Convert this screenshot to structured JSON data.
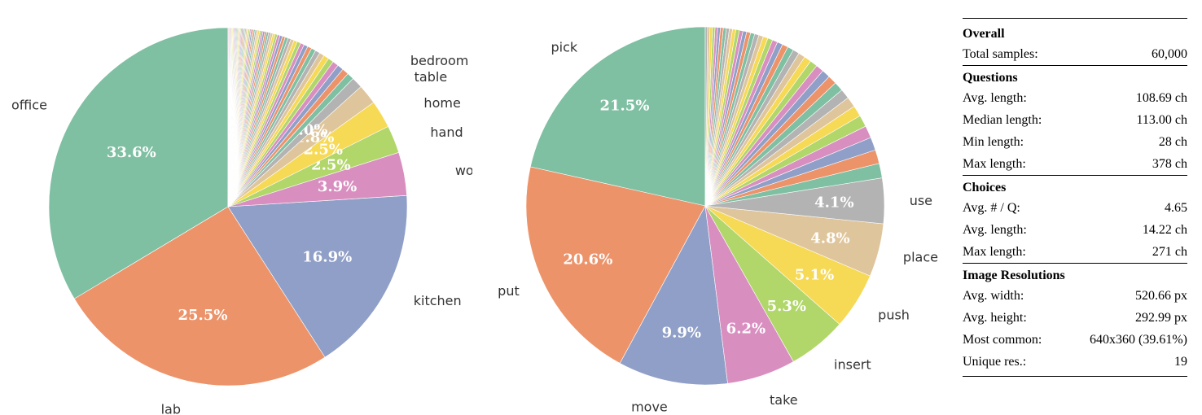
{
  "chart_data": [
    {
      "type": "pie",
      "title": "",
      "slices": [
        {
          "label": "office",
          "value": 33.6,
          "pct_text": "33.6%",
          "color": "#7fbfa2"
        },
        {
          "label": "lab",
          "value": 25.5,
          "pct_text": "25.5%",
          "color": "#ec936a"
        },
        {
          "label": "kitchen",
          "value": 16.9,
          "pct_text": "16.9%",
          "color": "#909fc7"
        },
        {
          "label": "workshop",
          "value": 3.9,
          "pct_text": "3.9%",
          "color": "#d88fc0"
        },
        {
          "label": "hand",
          "value": 2.5,
          "pct_text": "2.5%",
          "color": "#b1d66a"
        },
        {
          "label": "home",
          "value": 2.5,
          "pct_text": "2.5%",
          "color": "#f6d955"
        },
        {
          "label": "table",
          "value": 1.8,
          "pct_text": "1.8%",
          "color": "#dfc59b"
        },
        {
          "label": "bedroom",
          "value": 1.0,
          "pct_text": "1.0%",
          "color": "#b3b3b3"
        }
      ],
      "small_slices": {
        "count": 60,
        "total_value": 12.3
      },
      "colors": [
        "#7fbfa2",
        "#ec936a",
        "#909fc7",
        "#d88fc0",
        "#b1d66a",
        "#f6d955",
        "#dfc59b",
        "#b3b3b3"
      ]
    },
    {
      "type": "pie",
      "title": "",
      "slices": [
        {
          "label": "pick",
          "value": 21.5,
          "pct_text": "21.5%",
          "color": "#7fbfa2"
        },
        {
          "label": "put",
          "value": 20.6,
          "pct_text": "20.6%",
          "color": "#ec936a"
        },
        {
          "label": "move",
          "value": 9.9,
          "pct_text": "9.9%",
          "color": "#909fc7"
        },
        {
          "label": "take",
          "value": 6.2,
          "pct_text": "6.2%",
          "color": "#d88fc0"
        },
        {
          "label": "insert",
          "value": 5.3,
          "pct_text": "5.3%",
          "color": "#b1d66a"
        },
        {
          "label": "push",
          "value": 5.1,
          "pct_text": "5.1%",
          "color": "#f6d955"
        },
        {
          "label": "place",
          "value": 4.8,
          "pct_text": "4.8%",
          "color": "#dfc59b"
        },
        {
          "label": "use",
          "value": 4.1,
          "pct_text": "4.1%",
          "color": "#b3b3b3"
        }
      ],
      "small_slices": {
        "count": 40,
        "total_value": 22.5
      },
      "colors": [
        "#7fbfa2",
        "#ec936a",
        "#909fc7",
        "#d88fc0",
        "#b1d66a",
        "#f6d955",
        "#dfc59b",
        "#b3b3b3"
      ]
    },
    {
      "type": "table",
      "sections": [
        {
          "title": "Overall",
          "rows": [
            [
              "Total samples:",
              "60,000"
            ]
          ]
        },
        {
          "title": "Questions",
          "rows": [
            [
              "Avg. length:",
              "108.69 ch"
            ],
            [
              "Median length:",
              "113.00 ch"
            ],
            [
              "Min length:",
              "28 ch"
            ],
            [
              "Max length:",
              "378 ch"
            ]
          ]
        },
        {
          "title": "Choices",
          "rows": [
            [
              "Avg. # / Q:",
              "4.65"
            ],
            [
              "Avg. length:",
              "14.22 ch"
            ],
            [
              "Max length:",
              "271 ch"
            ]
          ]
        },
        {
          "title": "Image Resolutions",
          "rows": [
            [
              "Avg. width:",
              "520.66 px"
            ],
            [
              "Avg. height:",
              "292.99 px"
            ],
            [
              "Most common:",
              "640x360 (39.61%)"
            ],
            [
              "Unique res.:",
              "19"
            ]
          ]
        }
      ]
    }
  ]
}
